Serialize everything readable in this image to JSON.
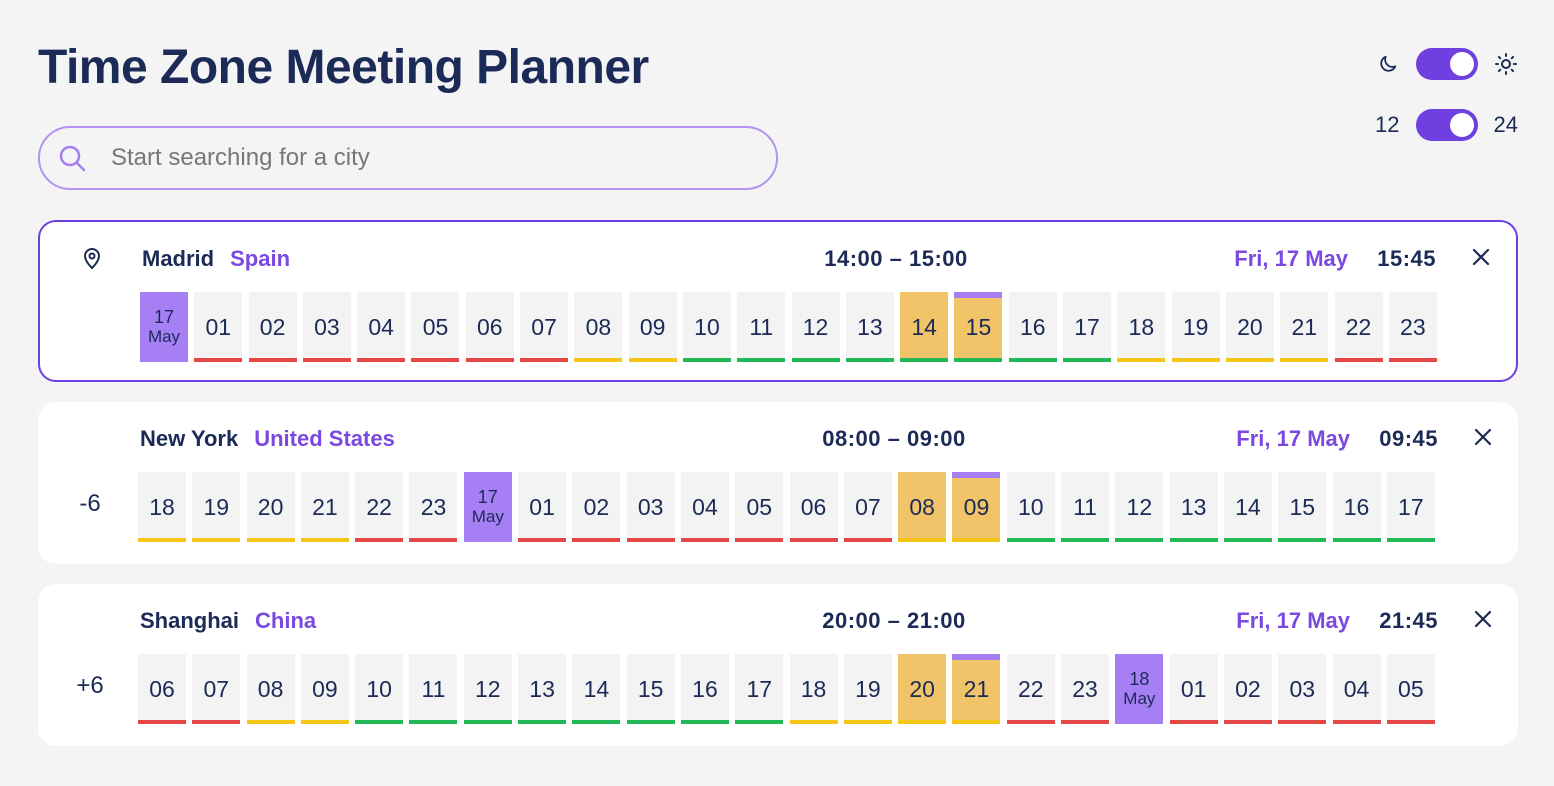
{
  "title": "Time Zone Meeting Planner",
  "search": {
    "placeholder": "Start searching for a city",
    "value": ""
  },
  "toggles": {
    "theme": {
      "left_icon": "moon-icon",
      "right_icon": "sun-icon",
      "on": true
    },
    "format": {
      "left_label": "12",
      "right_label": "24",
      "on": true
    }
  },
  "colors": {
    "accent": "#6f3fe0",
    "selection": "#f2c46a",
    "day_marker": "#a67ff5",
    "good": "#22b856",
    "ok": "#f5c518",
    "bad": "#e54646"
  },
  "cards": [
    {
      "home": true,
      "offset": "",
      "city": "Madrid",
      "country": "Spain",
      "range": "14:00 – 15:00",
      "date": "Fri, 17 May",
      "now": "15:45",
      "hours": [
        {
          "label": "17",
          "month": "May",
          "type": "day",
          "q": "bad"
        },
        {
          "label": "01",
          "q": "bad"
        },
        {
          "label": "02",
          "q": "bad"
        },
        {
          "label": "03",
          "q": "bad"
        },
        {
          "label": "04",
          "q": "bad"
        },
        {
          "label": "05",
          "q": "bad"
        },
        {
          "label": "06",
          "q": "bad"
        },
        {
          "label": "07",
          "q": "bad"
        },
        {
          "label": "08",
          "q": "ok"
        },
        {
          "label": "09",
          "q": "ok"
        },
        {
          "label": "10",
          "q": "good"
        },
        {
          "label": "11",
          "q": "good"
        },
        {
          "label": "12",
          "q": "good"
        },
        {
          "label": "13",
          "q": "good"
        },
        {
          "label": "14",
          "q": "good",
          "sel": true
        },
        {
          "label": "15",
          "q": "good",
          "sel": true,
          "start": true
        },
        {
          "label": "16",
          "q": "good"
        },
        {
          "label": "17",
          "q": "good"
        },
        {
          "label": "18",
          "q": "ok"
        },
        {
          "label": "19",
          "q": "ok"
        },
        {
          "label": "20",
          "q": "ok"
        },
        {
          "label": "21",
          "q": "ok"
        },
        {
          "label": "22",
          "q": "bad"
        },
        {
          "label": "23",
          "q": "bad"
        }
      ]
    },
    {
      "home": false,
      "offset": "-6",
      "city": "New York",
      "country": "United States",
      "range": "08:00 – 09:00",
      "date": "Fri, 17 May",
      "now": "09:45",
      "hours": [
        {
          "label": "18",
          "q": "ok"
        },
        {
          "label": "19",
          "q": "ok"
        },
        {
          "label": "20",
          "q": "ok"
        },
        {
          "label": "21",
          "q": "ok"
        },
        {
          "label": "22",
          "q": "bad"
        },
        {
          "label": "23",
          "q": "bad"
        },
        {
          "label": "17",
          "month": "May",
          "type": "day",
          "q": "bad"
        },
        {
          "label": "01",
          "q": "bad"
        },
        {
          "label": "02",
          "q": "bad"
        },
        {
          "label": "03",
          "q": "bad"
        },
        {
          "label": "04",
          "q": "bad"
        },
        {
          "label": "05",
          "q": "bad"
        },
        {
          "label": "06",
          "q": "bad"
        },
        {
          "label": "07",
          "q": "bad"
        },
        {
          "label": "08",
          "q": "ok",
          "sel": true
        },
        {
          "label": "09",
          "q": "ok",
          "sel": true,
          "start": true
        },
        {
          "label": "10",
          "q": "good"
        },
        {
          "label": "11",
          "q": "good"
        },
        {
          "label": "12",
          "q": "good"
        },
        {
          "label": "13",
          "q": "good"
        },
        {
          "label": "14",
          "q": "good"
        },
        {
          "label": "15",
          "q": "good"
        },
        {
          "label": "16",
          "q": "good"
        },
        {
          "label": "17",
          "q": "good"
        }
      ]
    },
    {
      "home": false,
      "offset": "+6",
      "city": "Shanghai",
      "country": "China",
      "range": "20:00 – 21:00",
      "date": "Fri, 17 May",
      "now": "21:45",
      "hours": [
        {
          "label": "06",
          "q": "bad"
        },
        {
          "label": "07",
          "q": "bad"
        },
        {
          "label": "08",
          "q": "ok"
        },
        {
          "label": "09",
          "q": "ok"
        },
        {
          "label": "10",
          "q": "good"
        },
        {
          "label": "11",
          "q": "good"
        },
        {
          "label": "12",
          "q": "good"
        },
        {
          "label": "13",
          "q": "good"
        },
        {
          "label": "14",
          "q": "good"
        },
        {
          "label": "15",
          "q": "good"
        },
        {
          "label": "16",
          "q": "good"
        },
        {
          "label": "17",
          "q": "good"
        },
        {
          "label": "18",
          "q": "ok"
        },
        {
          "label": "19",
          "q": "ok"
        },
        {
          "label": "20",
          "q": "ok",
          "sel": true
        },
        {
          "label": "21",
          "q": "ok",
          "sel": true,
          "start": true
        },
        {
          "label": "22",
          "q": "bad"
        },
        {
          "label": "23",
          "q": "bad"
        },
        {
          "label": "18",
          "month": "May",
          "type": "day",
          "q": "bad"
        },
        {
          "label": "01",
          "q": "bad"
        },
        {
          "label": "02",
          "q": "bad"
        },
        {
          "label": "03",
          "q": "bad"
        },
        {
          "label": "04",
          "q": "bad"
        },
        {
          "label": "05",
          "q": "bad"
        }
      ]
    }
  ]
}
